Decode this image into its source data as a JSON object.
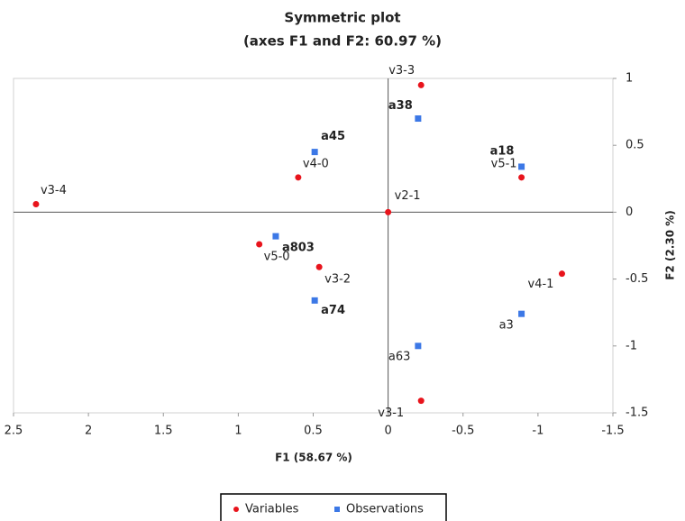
{
  "chart_data": {
    "type": "scatter",
    "title": "Symmetric plot",
    "subtitle": "(axes F1 and F2: 60.97 %)",
    "x_label": "F1 (58.67 %)",
    "y_label": "F2 (2.30 %)",
    "xlim": [
      2.5,
      -1.5
    ],
    "xticks": [
      2.5,
      2,
      1.5,
      1,
      0.5,
      0,
      -0.5,
      -1,
      -1.5
    ],
    "ylim": [
      -1.5,
      1
    ],
    "yticks": [
      1,
      0.5,
      0,
      -0.5,
      -1,
      -1.5
    ],
    "y_axis_side": "right",
    "legend": "bottom",
    "series": [
      {
        "name": "Variables",
        "color": "#e8141c",
        "labels": [
          "v3-3",
          "v3-4",
          "v4-0",
          "v2-1",
          "v5-1",
          "v5-0",
          "v3-2",
          "v4-1",
          "v3-1"
        ],
        "x": [
          -0.22,
          2.35,
          0.6,
          0,
          -0.89,
          0.86,
          0.46,
          -1.16,
          -0.22
        ],
        "values": [
          0.95,
          0.06,
          0.26,
          0,
          0.26,
          -0.24,
          -0.41,
          -0.46,
          -1.41
        ]
      },
      {
        "name": "Observations",
        "color": "#3c78e6",
        "labels": [
          "a38",
          "a45",
          "a18",
          "a803",
          "a74",
          "a3",
          "a63"
        ],
        "x": [
          -0.2,
          0.49,
          -0.89,
          0.75,
          0.49,
          -0.89,
          -0.2
        ],
        "values": [
          0.7,
          0.45,
          0.34,
          -0.18,
          -0.66,
          -0.76,
          -1.0
        ]
      }
    ]
  }
}
